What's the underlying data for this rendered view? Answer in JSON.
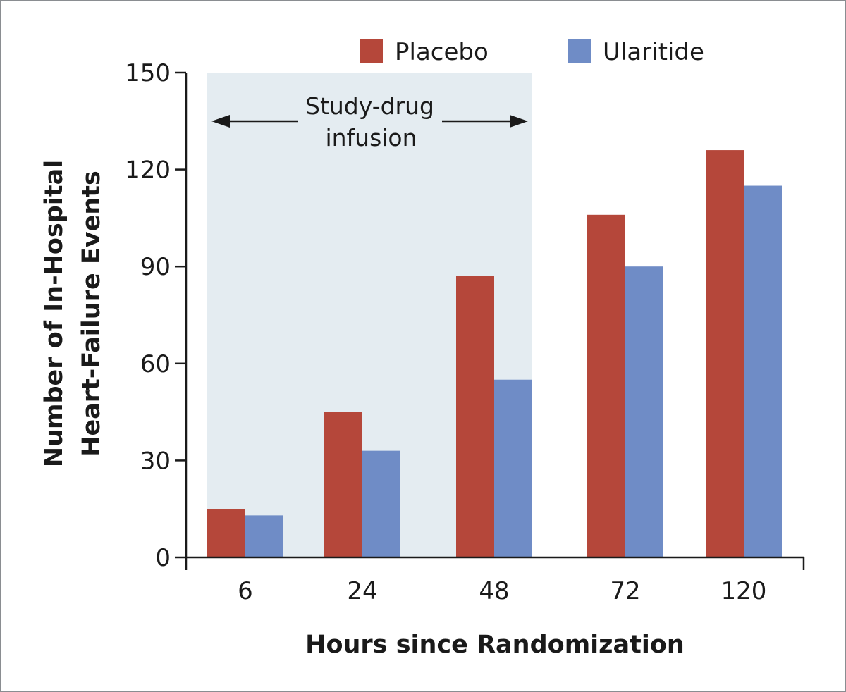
{
  "chart_data": {
    "type": "bar",
    "xlabel": "Hours since Randomization",
    "ylabel_lines": [
      "Number of In-Hospital",
      "Heart-Failure Events"
    ],
    "categories": [
      "6",
      "24",
      "48",
      "72",
      "120"
    ],
    "series": [
      {
        "name": "Placebo",
        "color": "#b5473a",
        "values": [
          15,
          45,
          87,
          106,
          126
        ]
      },
      {
        "name": "Ularitide",
        "color": "#6f8cc6",
        "values": [
          13,
          33,
          55,
          90,
          115
        ]
      }
    ],
    "ylim": [
      0,
      150
    ],
    "yticks": [
      "0",
      "30",
      "60",
      "90",
      "120",
      "150"
    ],
    "grid": false,
    "legend_position": "top",
    "shaded_region": {
      "from_category": "6",
      "to_category": "48",
      "label_lines": [
        "Study-drug",
        "infusion"
      ],
      "color": "#e4ecf1"
    }
  }
}
